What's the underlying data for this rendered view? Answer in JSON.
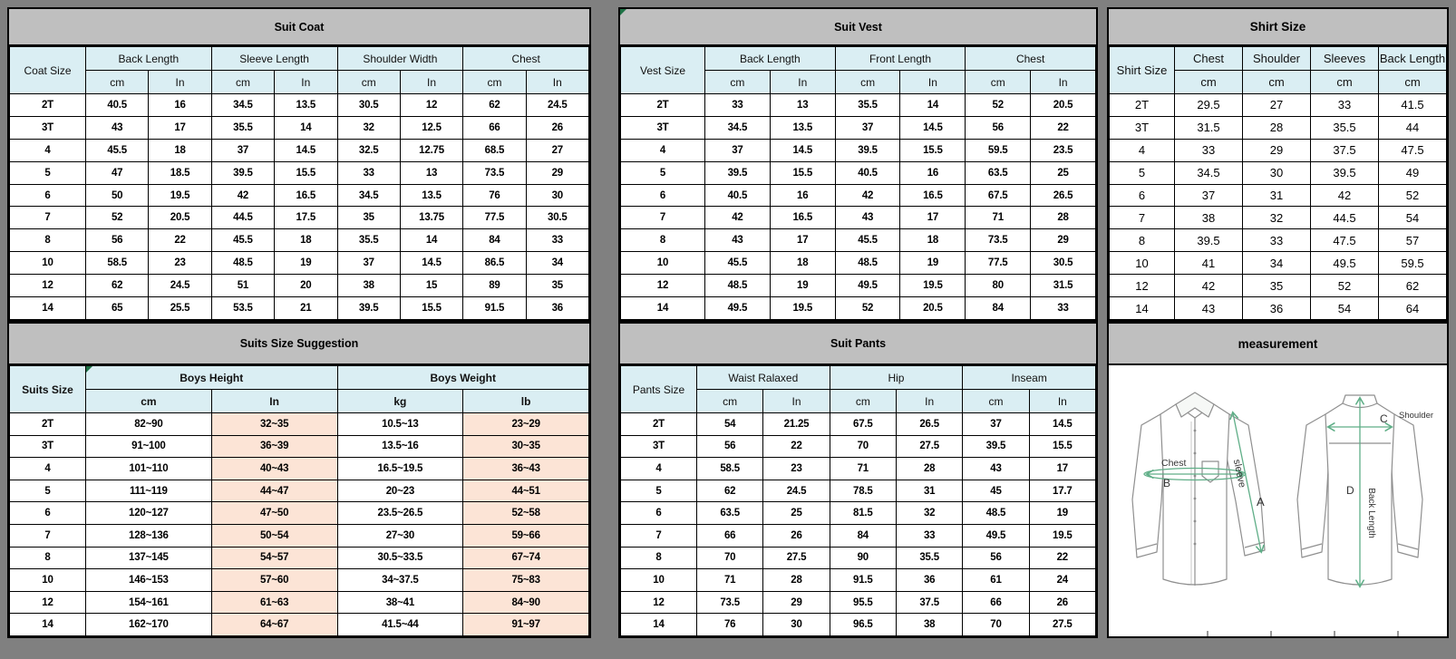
{
  "palette": {
    "canvas_bg": "#808080",
    "title_bar_bg": "#bfbfbf",
    "header_bg": "#daeef3",
    "highlight_bg": "#fce4d6",
    "border": "#000000",
    "corner_marker_green": "#1e7145",
    "diagram_line_green": "#5fae87",
    "diagram_outline_gray": "#8f8f8f"
  },
  "tables": {
    "suit_coat": {
      "title": "Suit Coat",
      "size_header": "Coat Size",
      "first_col_width": 84,
      "col_groups": [
        {
          "label": "Back Length",
          "units": [
            "cm",
            "In"
          ]
        },
        {
          "label": "Sleeve Length",
          "units": [
            "cm",
            "In"
          ]
        },
        {
          "label": "Shoulder Width",
          "units": [
            "cm",
            "In"
          ]
        },
        {
          "label": "Chest",
          "units": [
            "cm",
            "In"
          ]
        }
      ],
      "rows": [
        {
          "size": "2T",
          "values": [
            "40.5",
            "16",
            "34.5",
            "13.5",
            "30.5",
            "12",
            "62",
            "24.5"
          ]
        },
        {
          "size": "3T",
          "values": [
            "43",
            "17",
            "35.5",
            "14",
            "32",
            "12.5",
            "66",
            "26"
          ]
        },
        {
          "size": "4",
          "values": [
            "45.5",
            "18",
            "37",
            "14.5",
            "32.5",
            "12.75",
            "68.5",
            "27"
          ]
        },
        {
          "size": "5",
          "values": [
            "47",
            "18.5",
            "39.5",
            "15.5",
            "33",
            "13",
            "73.5",
            "29"
          ]
        },
        {
          "size": "6",
          "values": [
            "50",
            "19.5",
            "42",
            "16.5",
            "34.5",
            "13.5",
            "76",
            "30"
          ]
        },
        {
          "size": "7",
          "values": [
            "52",
            "20.5",
            "44.5",
            "17.5",
            "35",
            "13.75",
            "77.5",
            "30.5"
          ]
        },
        {
          "size": "8",
          "values": [
            "56",
            "22",
            "45.5",
            "18",
            "35.5",
            "14",
            "84",
            "33"
          ]
        },
        {
          "size": "10",
          "values": [
            "58.5",
            "23",
            "48.5",
            "19",
            "37",
            "14.5",
            "86.5",
            "34"
          ]
        },
        {
          "size": "12",
          "values": [
            "62",
            "24.5",
            "51",
            "20",
            "38",
            "15",
            "89",
            "35"
          ]
        },
        {
          "size": "14",
          "values": [
            "65",
            "25.5",
            "53.5",
            "21",
            "39.5",
            "15.5",
            "91.5",
            "36"
          ]
        }
      ]
    },
    "suit_vest": {
      "title": "Suit Vest",
      "size_header": "Vest Size",
      "first_col_width": 93,
      "corner_marker_title": true,
      "col_groups": [
        {
          "label": "Back Length",
          "units": [
            "cm",
            "In"
          ]
        },
        {
          "label": "Front Length",
          "units": [
            "cm",
            "In"
          ]
        },
        {
          "label": "Chest",
          "units": [
            "cm",
            "In"
          ]
        }
      ],
      "rows": [
        {
          "size": "2T",
          "values": [
            "33",
            "13",
            "35.5",
            "14",
            "52",
            "20.5"
          ]
        },
        {
          "size": "3T",
          "values": [
            "34.5",
            "13.5",
            "37",
            "14.5",
            "56",
            "22"
          ]
        },
        {
          "size": "4",
          "values": [
            "37",
            "14.5",
            "39.5",
            "15.5",
            "59.5",
            "23.5"
          ]
        },
        {
          "size": "5",
          "values": [
            "39.5",
            "15.5",
            "40.5",
            "16",
            "63.5",
            "25"
          ]
        },
        {
          "size": "6",
          "values": [
            "40.5",
            "16",
            "42",
            "16.5",
            "67.5",
            "26.5"
          ]
        },
        {
          "size": "7",
          "values": [
            "42",
            "16.5",
            "43",
            "17",
            "71",
            "28"
          ]
        },
        {
          "size": "8",
          "values": [
            "43",
            "17",
            "45.5",
            "18",
            "73.5",
            "29"
          ]
        },
        {
          "size": "10",
          "values": [
            "45.5",
            "18",
            "48.5",
            "19",
            "77.5",
            "30.5"
          ]
        },
        {
          "size": "12",
          "values": [
            "48.5",
            "19",
            "49.5",
            "19.5",
            "80",
            "31.5"
          ]
        },
        {
          "size": "14",
          "values": [
            "49.5",
            "19.5",
            "52",
            "20.5",
            "84",
            "33"
          ]
        }
      ]
    },
    "shirt_size": {
      "title": "Shirt Size",
      "size_header": "Shirt Size",
      "first_col_width": 72,
      "col_groups": [
        {
          "label": "Chest",
          "units": [
            "cm"
          ]
        },
        {
          "label": "Shoulder",
          "units": [
            "cm"
          ]
        },
        {
          "label": "Sleeves",
          "units": [
            "cm"
          ]
        },
        {
          "label": "Back Length",
          "units": [
            "cm"
          ]
        }
      ],
      "rows": [
        {
          "size": "2T",
          "values": [
            "29.5",
            "27",
            "33",
            "41.5"
          ]
        },
        {
          "size": "3T",
          "values": [
            "31.5",
            "28",
            "35.5",
            "44"
          ]
        },
        {
          "size": "4",
          "values": [
            "33",
            "29",
            "37.5",
            "47.5"
          ]
        },
        {
          "size": "5",
          "values": [
            "34.5",
            "30",
            "39.5",
            "49"
          ]
        },
        {
          "size": "6",
          "values": [
            "37",
            "31",
            "42",
            "52"
          ]
        },
        {
          "size": "7",
          "values": [
            "38",
            "32",
            "44.5",
            "54"
          ]
        },
        {
          "size": "8",
          "values": [
            "39.5",
            "33",
            "47.5",
            "57"
          ]
        },
        {
          "size": "10",
          "values": [
            "41",
            "34",
            "49.5",
            "59.5"
          ]
        },
        {
          "size": "12",
          "values": [
            "42",
            "35",
            "52",
            "62"
          ]
        },
        {
          "size": "14",
          "values": [
            "43",
            "36",
            "54",
            "64"
          ]
        }
      ]
    },
    "suits_suggestion": {
      "title": "Suits Size Suggestion",
      "size_header": "Suits Size",
      "first_col_width": 84,
      "corner_marker_group": 0,
      "highlight_cols": [
        1,
        3
      ],
      "col_groups": [
        {
          "label": "Boys Height",
          "units": [
            "cm",
            "In"
          ]
        },
        {
          "label": "Boys Weight",
          "units": [
            "kg",
            "lb"
          ]
        }
      ],
      "rows": [
        {
          "size": "2T",
          "values": [
            "82~90",
            "32~35",
            "10.5~13",
            "23~29"
          ]
        },
        {
          "size": "3T",
          "values": [
            "91~100",
            "36~39",
            "13.5~16",
            "30~35"
          ]
        },
        {
          "size": "4",
          "values": [
            "101~110",
            "40~43",
            "16.5~19.5",
            "36~43"
          ]
        },
        {
          "size": "5",
          "values": [
            "111~119",
            "44~47",
            "20~23",
            "44~51"
          ]
        },
        {
          "size": "6",
          "values": [
            "120~127",
            "47~50",
            "23.5~26.5",
            "52~58"
          ]
        },
        {
          "size": "7",
          "values": [
            "128~136",
            "50~54",
            "27~30",
            "59~66"
          ]
        },
        {
          "size": "8",
          "values": [
            "137~145",
            "54~57",
            "30.5~33.5",
            "67~74"
          ]
        },
        {
          "size": "10",
          "values": [
            "146~153",
            "57~60",
            "34~37.5",
            "75~83"
          ]
        },
        {
          "size": "12",
          "values": [
            "154~161",
            "61~63",
            "38~41",
            "84~90"
          ]
        },
        {
          "size": "14",
          "values": [
            "162~170",
            "64~67",
            "41.5~44",
            "91~97"
          ]
        }
      ]
    },
    "suit_pants": {
      "title": "Suit Pants",
      "size_header": "Pants Size",
      "first_col_width": 84,
      "col_groups": [
        {
          "label": "Waist Ralaxed",
          "units": [
            "cm",
            "In"
          ]
        },
        {
          "label": "Hip",
          "units": [
            "cm",
            "In"
          ]
        },
        {
          "label": "Inseam",
          "units": [
            "cm",
            "In"
          ]
        }
      ],
      "rows": [
        {
          "size": "2T",
          "values": [
            "54",
            "21.25",
            "67.5",
            "26.5",
            "37",
            "14.5"
          ]
        },
        {
          "size": "3T",
          "values": [
            "56",
            "22",
            "70",
            "27.5",
            "39.5",
            "15.5"
          ]
        },
        {
          "size": "4",
          "values": [
            "58.5",
            "23",
            "71",
            "28",
            "43",
            "17"
          ]
        },
        {
          "size": "5",
          "values": [
            "62",
            "24.5",
            "78.5",
            "31",
            "45",
            "17.7"
          ]
        },
        {
          "size": "6",
          "values": [
            "63.5",
            "25",
            "81.5",
            "32",
            "48.5",
            "19"
          ]
        },
        {
          "size": "7",
          "values": [
            "66",
            "26",
            "84",
            "33",
            "49.5",
            "19.5"
          ]
        },
        {
          "size": "8",
          "values": [
            "70",
            "27.5",
            "90",
            "35.5",
            "56",
            "22"
          ]
        },
        {
          "size": "10",
          "values": [
            "71",
            "28",
            "91.5",
            "36",
            "61",
            "24"
          ]
        },
        {
          "size": "12",
          "values": [
            "73.5",
            "29",
            "95.5",
            "37.5",
            "66",
            "26"
          ]
        },
        {
          "size": "14",
          "values": [
            "76",
            "30",
            "96.5",
            "38",
            "70",
            "27.5"
          ]
        }
      ]
    },
    "measurement": {
      "title": "measurement",
      "labels": {
        "sleeve": "sleeve",
        "a": "A",
        "chest": "Chest",
        "b": "B",
        "shoulder": "Shoulder",
        "c": "C",
        "d": "D",
        "back_length": "Back Length"
      }
    }
  }
}
